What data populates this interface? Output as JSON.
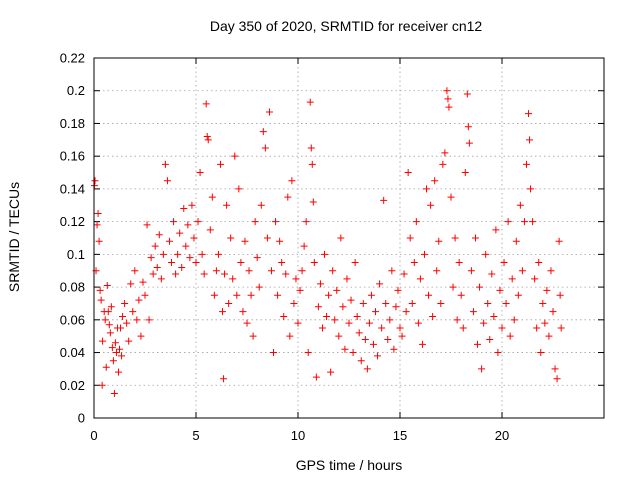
{
  "chart_data": {
    "type": "scatter",
    "title": "Day 350 of 2020, SRMTID for receiver cn12",
    "xlabel": "GPS time / hours",
    "ylabel": "SRMTID / TECUs",
    "xlim": [
      0,
      25
    ],
    "ylim": [
      0,
      0.22
    ],
    "xticks": [
      0,
      5,
      10,
      15,
      20
    ],
    "xtick_labels": [
      "0",
      "5",
      "10",
      "15",
      "20"
    ],
    "yticks": [
      0,
      0.02,
      0.04,
      0.06,
      0.08,
      0.1,
      0.12,
      0.14,
      0.16,
      0.18,
      0.2,
      0.22
    ],
    "ytick_labels": [
      "0",
      "0.02",
      "0.04",
      "0.06",
      "0.08",
      "0.1",
      "0.12",
      "0.14",
      "0.16",
      "0.18",
      "0.2",
      "0.22"
    ],
    "grid": true,
    "marker": "+",
    "color": "#ff0000",
    "series": [
      {
        "name": "SRMTID",
        "points": [
          [
            0.02,
            0.142
          ],
          [
            0.05,
            0.145
          ],
          [
            0.1,
            0.09
          ],
          [
            0.15,
            0.118
          ],
          [
            0.2,
            0.125
          ],
          [
            0.25,
            0.108
          ],
          [
            0.3,
            0.078
          ],
          [
            0.35,
            0.072
          ],
          [
            0.4,
            0.02
          ],
          [
            0.42,
            0.047
          ],
          [
            0.5,
            0.065
          ],
          [
            0.55,
            0.06
          ],
          [
            0.6,
            0.031
          ],
          [
            0.65,
            0.081
          ],
          [
            0.7,
            0.065
          ],
          [
            0.75,
            0.057
          ],
          [
            0.8,
            0.052
          ],
          [
            0.85,
            0.068
          ],
          [
            0.9,
            0.043
          ],
          [
            0.95,
            0.035
          ],
          [
            1.0,
            0.015
          ],
          [
            1.05,
            0.046
          ],
          [
            1.1,
            0.04
          ],
          [
            1.15,
            0.055
          ],
          [
            1.2,
            0.028
          ],
          [
            1.25,
            0.042
          ],
          [
            1.3,
            0.055
          ],
          [
            1.35,
            0.038
          ],
          [
            1.4,
            0.062
          ],
          [
            1.5,
            0.07
          ],
          [
            1.6,
            0.058
          ],
          [
            1.7,
            0.047
          ],
          [
            1.8,
            0.082
          ],
          [
            1.9,
            0.065
          ],
          [
            2.0,
            0.09
          ],
          [
            2.1,
            0.06
          ],
          [
            2.2,
            0.072
          ],
          [
            2.3,
            0.05
          ],
          [
            2.4,
            0.083
          ],
          [
            2.5,
            0.075
          ],
          [
            2.6,
            0.118
          ],
          [
            2.7,
            0.06
          ],
          [
            2.8,
            0.098
          ],
          [
            2.9,
            0.088
          ],
          [
            3.0,
            0.105
          ],
          [
            3.1,
            0.092
          ],
          [
            3.2,
            0.112
          ],
          [
            3.3,
            0.085
          ],
          [
            3.4,
            0.1
          ],
          [
            3.5,
            0.155
          ],
          [
            3.6,
            0.145
          ],
          [
            3.7,
            0.108
          ],
          [
            3.8,
            0.095
          ],
          [
            3.9,
            0.12
          ],
          [
            4.0,
            0.088
          ],
          [
            4.1,
            0.1
          ],
          [
            4.2,
            0.113
          ],
          [
            4.3,
            0.092
          ],
          [
            4.4,
            0.128
          ],
          [
            4.5,
            0.105
          ],
          [
            4.6,
            0.118
          ],
          [
            4.7,
            0.098
          ],
          [
            4.8,
            0.13
          ],
          [
            4.9,
            0.11
          ],
          [
            5.0,
            0.095
          ],
          [
            5.1,
            0.12
          ],
          [
            5.2,
            0.15
          ],
          [
            5.3,
            0.1
          ],
          [
            5.4,
            0.088
          ],
          [
            5.5,
            0.192
          ],
          [
            5.55,
            0.172
          ],
          [
            5.6,
            0.17
          ],
          [
            5.7,
            0.115
          ],
          [
            5.8,
            0.135
          ],
          [
            5.9,
            0.075
          ],
          [
            6.0,
            0.09
          ],
          [
            6.1,
            0.1
          ],
          [
            6.2,
            0.155
          ],
          [
            6.3,
            0.065
          ],
          [
            6.35,
            0.024
          ],
          [
            6.4,
            0.088
          ],
          [
            6.5,
            0.13
          ],
          [
            6.6,
            0.07
          ],
          [
            6.7,
            0.11
          ],
          [
            6.8,
            0.085
          ],
          [
            6.9,
            0.16
          ],
          [
            7.0,
            0.075
          ],
          [
            7.1,
            0.14
          ],
          [
            7.2,
            0.095
          ],
          [
            7.3,
            0.065
          ],
          [
            7.4,
            0.108
          ],
          [
            7.5,
            0.058
          ],
          [
            7.6,
            0.09
          ],
          [
            7.7,
            0.075
          ],
          [
            7.8,
            0.05
          ],
          [
            7.9,
            0.12
          ],
          [
            8.0,
            0.098
          ],
          [
            8.1,
            0.08
          ],
          [
            8.2,
            0.13
          ],
          [
            8.3,
            0.175
          ],
          [
            8.4,
            0.165
          ],
          [
            8.5,
            0.11
          ],
          [
            8.6,
            0.187
          ],
          [
            8.7,
            0.09
          ],
          [
            8.8,
            0.04
          ],
          [
            8.9,
            0.12
          ],
          [
            9.0,
            0.075
          ],
          [
            9.1,
            0.108
          ],
          [
            9.2,
            0.095
          ],
          [
            9.3,
            0.062
          ],
          [
            9.4,
            0.088
          ],
          [
            9.5,
            0.135
          ],
          [
            9.6,
            0.05
          ],
          [
            9.7,
            0.145
          ],
          [
            9.8,
            0.07
          ],
          [
            9.9,
            0.085
          ],
          [
            10.0,
            0.058
          ],
          [
            10.1,
            0.078
          ],
          [
            10.2,
            0.09
          ],
          [
            10.3,
            0.105
          ],
          [
            10.4,
            0.12
          ],
          [
            10.5,
            0.04
          ],
          [
            10.6,
            0.193
          ],
          [
            10.65,
            0.165
          ],
          [
            10.7,
            0.155
          ],
          [
            10.75,
            0.132
          ],
          [
            10.8,
            0.095
          ],
          [
            10.9,
            0.025
          ],
          [
            11.0,
            0.068
          ],
          [
            11.1,
            0.082
          ],
          [
            11.2,
            0.055
          ],
          [
            11.3,
            0.1
          ],
          [
            11.4,
            0.062
          ],
          [
            11.5,
            0.075
          ],
          [
            11.6,
            0.028
          ],
          [
            11.7,
            0.09
          ],
          [
            11.8,
            0.06
          ],
          [
            11.9,
            0.078
          ],
          [
            12.0,
            0.05
          ],
          [
            12.1,
            0.11
          ],
          [
            12.2,
            0.068
          ],
          [
            12.3,
            0.042
          ],
          [
            12.4,
            0.085
          ],
          [
            12.5,
            0.058
          ],
          [
            12.6,
            0.072
          ],
          [
            12.7,
            0.04
          ],
          [
            12.8,
            0.095
          ],
          [
            12.9,
            0.062
          ],
          [
            13.0,
            0.052
          ],
          [
            13.1,
            0.035
          ],
          [
            13.2,
            0.07
          ],
          [
            13.3,
            0.048
          ],
          [
            13.4,
            0.03
          ],
          [
            13.5,
            0.058
          ],
          [
            13.6,
            0.075
          ],
          [
            13.7,
            0.045
          ],
          [
            13.8,
            0.065
          ],
          [
            13.9,
            0.038
          ],
          [
            14.0,
            0.082
          ],
          [
            14.1,
            0.055
          ],
          [
            14.2,
            0.133
          ],
          [
            14.3,
            0.07
          ],
          [
            14.4,
            0.048
          ],
          [
            14.5,
            0.06
          ],
          [
            14.6,
            0.09
          ],
          [
            14.7,
            0.042
          ],
          [
            14.8,
            0.068
          ],
          [
            14.9,
            0.078
          ],
          [
            15.0,
            0.055
          ],
          [
            15.1,
            0.05
          ],
          [
            15.2,
            0.088
          ],
          [
            15.3,
            0.065
          ],
          [
            15.4,
            0.15
          ],
          [
            15.5,
            0.11
          ],
          [
            15.6,
            0.07
          ],
          [
            15.7,
            0.095
          ],
          [
            15.8,
            0.12
          ],
          [
            15.9,
            0.058
          ],
          [
            16.0,
            0.085
          ],
          [
            16.1,
            0.045
          ],
          [
            16.2,
            0.1
          ],
          [
            16.3,
            0.14
          ],
          [
            16.4,
            0.075
          ],
          [
            16.5,
            0.13
          ],
          [
            16.6,
            0.062
          ],
          [
            16.7,
            0.145
          ],
          [
            16.8,
            0.09
          ],
          [
            16.9,
            0.108
          ],
          [
            17.0,
            0.07
          ],
          [
            17.1,
            0.155
          ],
          [
            17.2,
            0.162
          ],
          [
            17.3,
            0.2
          ],
          [
            17.35,
            0.195
          ],
          [
            17.4,
            0.19
          ],
          [
            17.5,
            0.135
          ],
          [
            17.6,
            0.08
          ],
          [
            17.7,
            0.11
          ],
          [
            17.8,
            0.06
          ],
          [
            17.9,
            0.095
          ],
          [
            18.0,
            0.075
          ],
          [
            18.1,
            0.055
          ],
          [
            18.2,
            0.15
          ],
          [
            18.3,
            0.198
          ],
          [
            18.35,
            0.178
          ],
          [
            18.4,
            0.168
          ],
          [
            18.5,
            0.09
          ],
          [
            18.6,
            0.065
          ],
          [
            18.7,
            0.11
          ],
          [
            18.8,
            0.045
          ],
          [
            18.9,
            0.08
          ],
          [
            19.0,
            0.03
          ],
          [
            19.1,
            0.058
          ],
          [
            19.2,
            0.1
          ],
          [
            19.3,
            0.07
          ],
          [
            19.4,
            0.048
          ],
          [
            19.5,
            0.088
          ],
          [
            19.6,
            0.062
          ],
          [
            19.7,
            0.115
          ],
          [
            19.8,
            0.04
          ],
          [
            19.9,
            0.078
          ],
          [
            20.0,
            0.055
          ],
          [
            20.1,
            0.095
          ],
          [
            20.2,
            0.07
          ],
          [
            20.3,
            0.12
          ],
          [
            20.4,
            0.05
          ],
          [
            20.5,
            0.085
          ],
          [
            20.6,
            0.06
          ],
          [
            20.7,
            0.108
          ],
          [
            20.8,
            0.075
          ],
          [
            20.9,
            0.13
          ],
          [
            21.0,
            0.09
          ],
          [
            21.1,
            0.12
          ],
          [
            21.2,
            0.155
          ],
          [
            21.3,
            0.186
          ],
          [
            21.35,
            0.17
          ],
          [
            21.4,
            0.14
          ],
          [
            21.5,
            0.12
          ],
          [
            21.6,
            0.085
          ],
          [
            21.7,
            0.055
          ],
          [
            21.8,
            0.095
          ],
          [
            21.9,
            0.04
          ],
          [
            22.0,
            0.07
          ],
          [
            22.1,
            0.058
          ],
          [
            22.2,
            0.078
          ],
          [
            22.3,
            0.05
          ],
          [
            22.4,
            0.09
          ],
          [
            22.5,
            0.065
          ],
          [
            22.6,
            0.03
          ],
          [
            22.7,
            0.024
          ],
          [
            22.8,
            0.108
          ],
          [
            22.85,
            0.075
          ],
          [
            22.9,
            0.055
          ]
        ]
      }
    ]
  }
}
